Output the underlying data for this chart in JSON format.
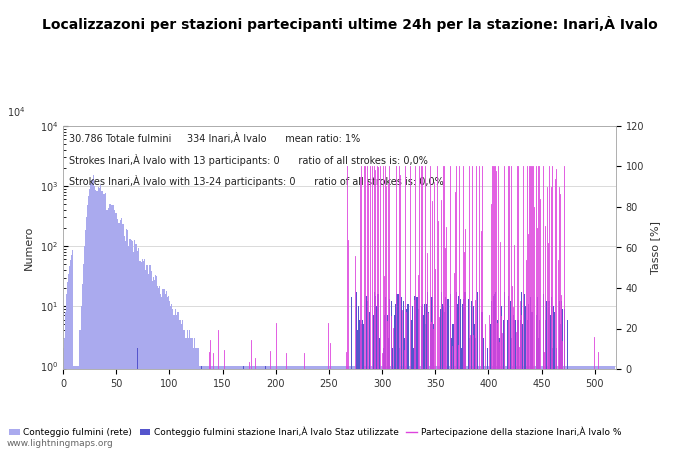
{
  "title": "Localizzazoni per stazioni partecipanti ultime 24h per la stazione: Inari,À Ivalo",
  "annotations": [
    "30.786 Totale fulmini     334 Inari,À Ivalo      mean ratio: 1%",
    "Strokes Inari,À Ivalo with 13 participants: 0      ratio of all strokes is: 0,0%",
    "Strokes Inari,À Ivalo with 13-24 participants: 0      ratio of all strokes is: 0,0%"
  ],
  "ylabel_left": "Numero",
  "ylabel_right": "Tasso [%]",
  "xlabel": "",
  "xlim": [
    0,
    520
  ],
  "ylim_right": [
    0,
    120
  ],
  "watermark": "www.lightningmaps.org",
  "legend": [
    {
      "label": "Conteggio fulmini (rete)",
      "color": "#aaaaee"
    },
    {
      "label": "Conteggio fulmini stazione Inari,À Ivalo Staz utilizzate",
      "color": "#5555cc"
    },
    {
      "label": "Partecipazione della stazione Inari,À Ivalo %",
      "color": "#dd44dd"
    }
  ],
  "bar_color_network": "#aaaaee",
  "bar_color_station": "#5555cc",
  "line_color_participation": "#dd44dd",
  "background_color": "#ffffff",
  "title_fontsize": 10,
  "annotation_fontsize": 7,
  "axis_label_fontsize": 8,
  "tick_label_fontsize": 7,
  "tick_color": "#333333",
  "label_color": "#333333"
}
